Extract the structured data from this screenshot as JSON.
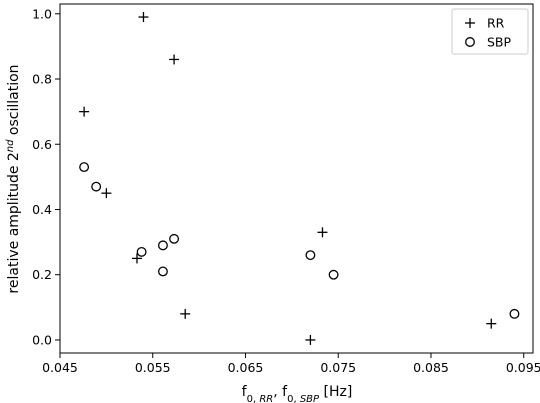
{
  "chart_data": {
    "type": "scatter",
    "title": "",
    "xlabel": "f0,RR, f0,SBP [Hz]",
    "ylabel": "relative amplitude 2nd oscillation",
    "xlim": [
      0.045,
      0.096
    ],
    "ylim": [
      -0.04,
      1.03
    ],
    "x_ticks": [
      0.045,
      0.055,
      0.065,
      0.075,
      0.085,
      0.095
    ],
    "x_tick_labels": [
      "0.045",
      "0.055",
      "0.065",
      "0.075",
      "0.085",
      "0.095"
    ],
    "y_ticks": [
      0.0,
      0.2,
      0.4,
      0.6,
      0.8,
      1.0
    ],
    "y_tick_labels": [
      "0.0",
      "0.2",
      "0.4",
      "0.6",
      "0.8",
      "1.0"
    ],
    "legend_position": "top-right",
    "series": [
      {
        "name": "RR",
        "marker": "plus",
        "points": [
          {
            "x": 0.054,
            "y": 0.99
          },
          {
            "x": 0.0573,
            "y": 0.86
          },
          {
            "x": 0.0476,
            "y": 0.7
          },
          {
            "x": 0.05,
            "y": 0.45
          },
          {
            "x": 0.0533,
            "y": 0.25
          },
          {
            "x": 0.0585,
            "y": 0.08
          },
          {
            "x": 0.0733,
            "y": 0.33
          },
          {
            "x": 0.072,
            "y": 0.0
          },
          {
            "x": 0.0915,
            "y": 0.05
          }
        ]
      },
      {
        "name": "SBP",
        "marker": "circle",
        "points": [
          {
            "x": 0.0476,
            "y": 0.53
          },
          {
            "x": 0.0489,
            "y": 0.47
          },
          {
            "x": 0.0538,
            "y": 0.27
          },
          {
            "x": 0.0561,
            "y": 0.29
          },
          {
            "x": 0.0573,
            "y": 0.31
          },
          {
            "x": 0.0561,
            "y": 0.21
          },
          {
            "x": 0.072,
            "y": 0.26
          },
          {
            "x": 0.0745,
            "y": 0.2
          },
          {
            "x": 0.094,
            "y": 0.08
          }
        ]
      }
    ]
  }
}
